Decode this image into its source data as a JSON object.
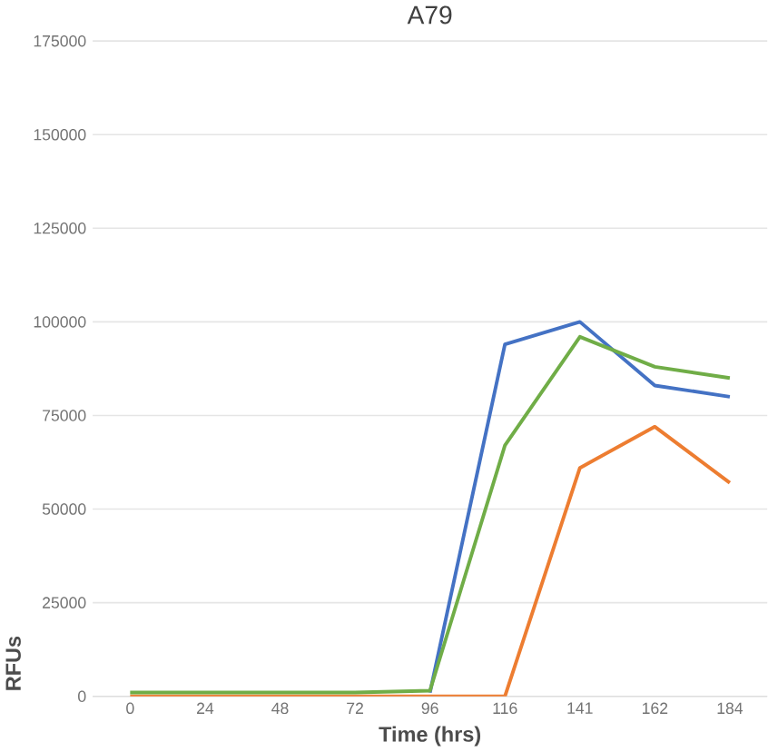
{
  "chart_data": {
    "type": "line",
    "title": "A79",
    "xlabel": "Time (hrs)",
    "ylabel": "RFUs",
    "categories": [
      "0",
      "24",
      "48",
      "72",
      "96",
      "116",
      "141",
      "162",
      "184"
    ],
    "series": [
      {
        "color": "#4472c4",
        "values": [
          null,
          null,
          null,
          null,
          1000,
          94000,
          100000,
          83000,
          80000
        ]
      },
      {
        "color": "#ed7d31",
        "values": [
          0,
          0,
          0,
          0,
          0,
          0,
          61000,
          72000,
          57000
        ]
      },
      {
        "color": "#70ad47",
        "values": [
          1000,
          1000,
          1000,
          1000,
          1500,
          67000,
          96000,
          88000,
          85000
        ]
      }
    ],
    "ylim": [
      0,
      175000
    ],
    "yticks": [
      0,
      25000,
      50000,
      75000,
      100000,
      125000,
      150000,
      175000
    ],
    "grid": "y",
    "marker": "none",
    "line_style": "solid"
  }
}
